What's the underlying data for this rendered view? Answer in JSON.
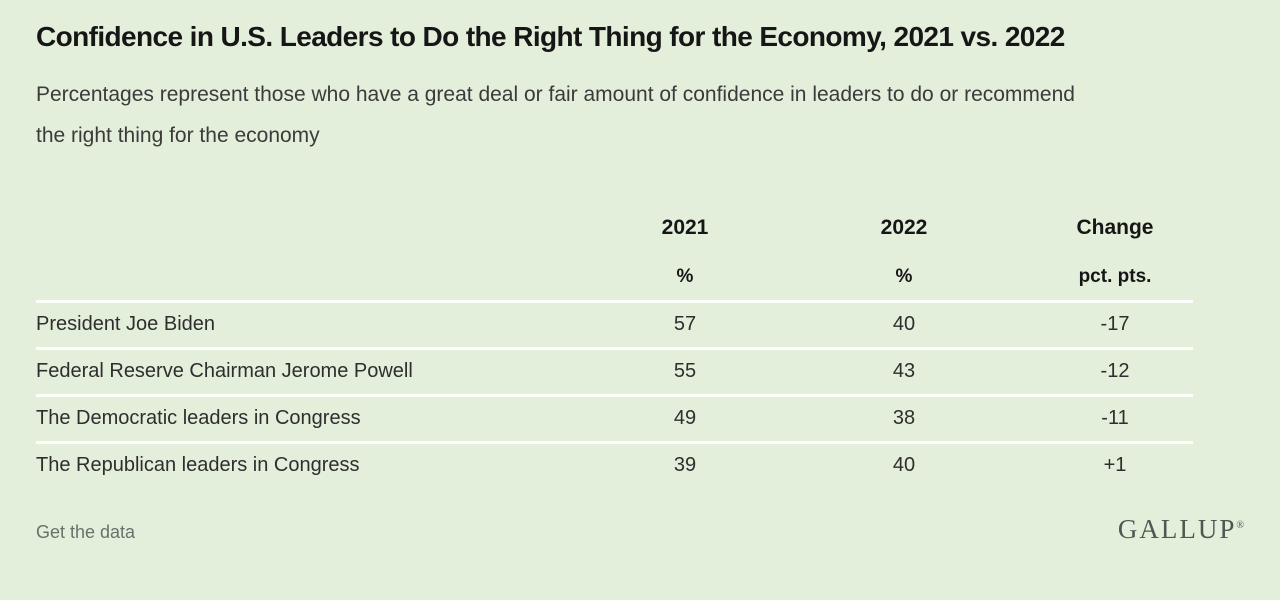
{
  "colors": {
    "background": "#e3eedb",
    "divider": "#fcfef9",
    "title_text": "#161616",
    "body_text": "#2e2e2e",
    "muted_text": "#68726b"
  },
  "chart_data": {
    "type": "table",
    "title": "Confidence in U.S. Leaders to Do the Right Thing for the Economy, 2021 vs. 2022",
    "subtitle": "Percentages represent those who have a great deal or fair amount of confidence in leaders to do or recommend the right thing for the economy",
    "columns": [
      "",
      "2021",
      "2022",
      "Change"
    ],
    "units": [
      "",
      "%",
      "%",
      "pct. pts."
    ],
    "rows": [
      {
        "label": "President Joe Biden",
        "values": [
          "57",
          "40",
          "-17"
        ]
      },
      {
        "label": "Federal Reserve Chairman Jerome Powell",
        "values": [
          "55",
          "43",
          "-12"
        ]
      },
      {
        "label": "The Democratic leaders in Congress",
        "values": [
          "49",
          "38",
          "-11"
        ]
      },
      {
        "label": "The Republican leaders in Congress",
        "values": [
          "39",
          "40",
          "+1"
        ]
      }
    ],
    "layout": {
      "grid": "off",
      "legend": "none",
      "row_dividers": "white horizontal rules"
    }
  },
  "footer": {
    "link_label": "Get the data",
    "brand": "GALLUP",
    "brand_mark": "®"
  }
}
